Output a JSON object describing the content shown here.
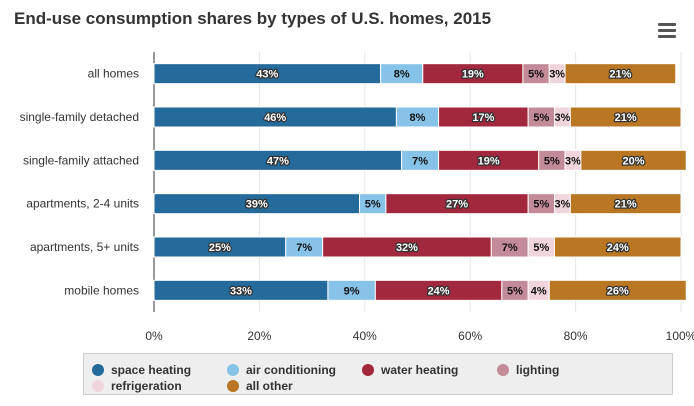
{
  "colors": {
    "space heating": "#246a9b",
    "air conditioning": "#87c3e8",
    "water heating": "#a1283d",
    "lighting": "#c38b98",
    "refrigeration": "#f1d5dc",
    "all other": "#b97623"
  },
  "icons": {
    "menu": "hamburger-menu-icon"
  },
  "chart_data": {
    "type": "bar",
    "orientation": "horizontal",
    "stacked": true,
    "title": "End-use consumption shares by types of U.S. homes, 2015",
    "categories": [
      "all homes",
      "single-family detached",
      "single-family attached",
      "apartments, 2-4 units",
      "apartments, 5+ units",
      "mobile homes"
    ],
    "series": [
      {
        "name": "space heating",
        "values": [
          43,
          46,
          47,
          39,
          25,
          33
        ]
      },
      {
        "name": "air conditioning",
        "values": [
          8,
          8,
          7,
          5,
          7,
          9
        ]
      },
      {
        "name": "water heating",
        "values": [
          19,
          17,
          19,
          27,
          32,
          24
        ]
      },
      {
        "name": "lighting",
        "values": [
          5,
          5,
          5,
          5,
          7,
          5
        ]
      },
      {
        "name": "refrigeration",
        "values": [
          3,
          3,
          3,
          3,
          5,
          4
        ]
      },
      {
        "name": "all other",
        "values": [
          21,
          21,
          20,
          21,
          24,
          26
        ]
      }
    ],
    "xlim": [
      0,
      100
    ],
    "xticks": [
      "0%",
      "20%",
      "40%",
      "60%",
      "80%",
      "100%"
    ],
    "grid": true,
    "legend_position": "bottom"
  }
}
